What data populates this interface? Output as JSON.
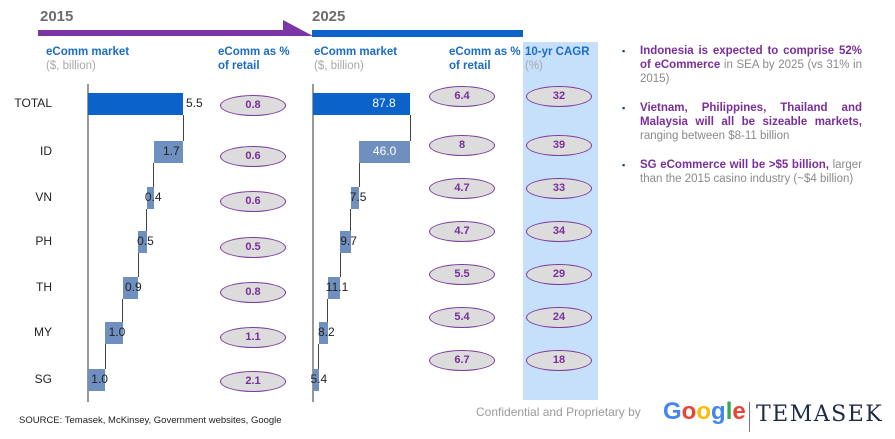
{
  "headers": {
    "year_left": "2015",
    "year_right": "2025",
    "ecomm_market": "eComm market",
    "ecomm_market_unit": "($, billion)",
    "ecomm_pct_line1": "eComm as %",
    "ecomm_pct_line2": "of retail",
    "cagr": "10-yr CAGR",
    "cagr_unit": "(%)"
  },
  "colors": {
    "total_bar": "#0b62c9",
    "segment_bar": "#6f8fbf",
    "arrow_purple": "#7b35a6",
    "bar_blue": "#0b62c9",
    "ellipse_border": "#7a3a9c",
    "ellipse_text": "#7a2e9a",
    "cagr_bg": "#c6e0fc"
  },
  "chart_data": {
    "type": "waterfall-table",
    "rows": [
      "TOTAL",
      "ID",
      "VN",
      "PH",
      "TH",
      "MY",
      "SG"
    ],
    "series": [
      {
        "name": "eComm market 2015 ($, billion)",
        "values": [
          5.5,
          1.7,
          0.4,
          0.5,
          0.9,
          1.0,
          1.0
        ]
      },
      {
        "name": "eComm as % of retail 2015",
        "values": [
          0.8,
          0.6,
          0.6,
          0.5,
          0.8,
          1.1,
          2.1
        ]
      },
      {
        "name": "eComm market 2025 ($, billion)",
        "values": [
          87.8,
          46.0,
          7.5,
          9.7,
          11.1,
          8.2,
          5.4
        ]
      },
      {
        "name": "eComm as % of retail 2025",
        "values": [
          "6.4",
          "8",
          "4.7",
          "4.7",
          "5.5",
          "5.4",
          "6.7"
        ]
      },
      {
        "name": "10-yr CAGR (%)",
        "values": [
          "32",
          "39",
          "33",
          "34",
          "29",
          "24",
          "18"
        ]
      }
    ],
    "labels_2015": [
      "5.5",
      "1.7",
      "0.4",
      "0.5",
      "0.9",
      "1.0",
      "1.0"
    ],
    "labels_2025": [
      "87.8",
      "46.0",
      "7.5",
      "9.7",
      "11.1",
      "8.2",
      "5.4"
    ],
    "pct_2015": [
      "0.8",
      "0.6",
      "0.6",
      "0.5",
      "0.8",
      "1.1",
      "2.1"
    ]
  },
  "bullets": [
    {
      "bold": "Indonesia is expected to comprise 52% of eCommerce",
      "normal": " in SEA by 2025 (vs 31% in 2015)"
    },
    {
      "bold": "Vietnam, Philippines, Thailand and Malaysia will all be sizeable markets,",
      "normal": " ranging between $8-11 billion"
    },
    {
      "bold": "SG eCommerce will be >$5 billion,",
      "normal": " larger than the 2015 casino industry (~$4 billion)"
    }
  ],
  "bullet_glyph": "▪",
  "footer": {
    "source": "SOURCE: Temasek, McKinsey, Government websites, Google",
    "confidential": "Confidential and Proprietary by",
    "google_letters": [
      "G",
      "o",
      "o",
      "g",
      "l",
      "e"
    ],
    "temasek": "TEMASEK"
  }
}
